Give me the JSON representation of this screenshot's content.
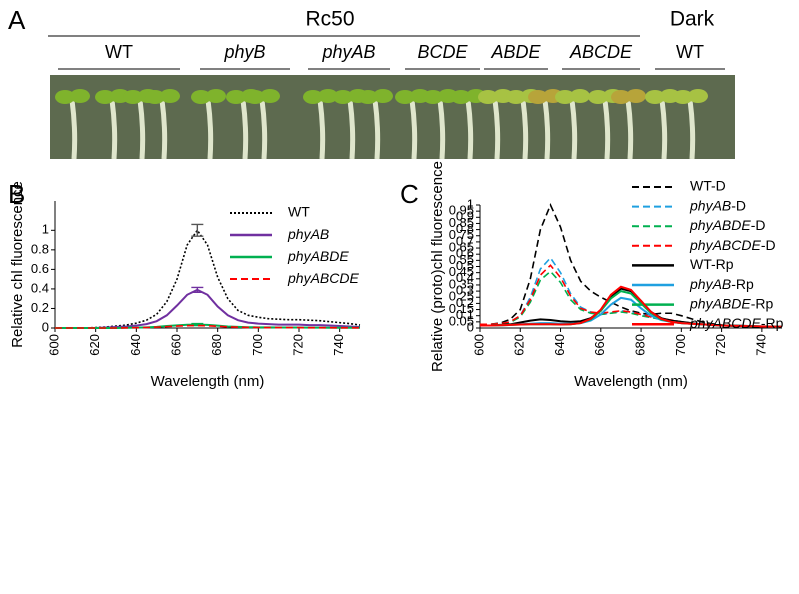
{
  "panel_a": {
    "label": "A",
    "light_header": "Rc50",
    "dark_header": "Dark",
    "genotypes": [
      "WT",
      "phyB",
      "phyAB",
      "BCDE",
      "ABDE",
      "ABCDE",
      "WT"
    ]
  },
  "chart_data": [
    {
      "type": "line",
      "panel_label": "B",
      "x_label": "Wavelength (nm)",
      "y_label": "Relative chl  fluorescence",
      "x": [
        600,
        605,
        610,
        615,
        620,
        625,
        630,
        635,
        640,
        645,
        650,
        655,
        660,
        665,
        670,
        675,
        680,
        685,
        690,
        695,
        700,
        705,
        710,
        715,
        720,
        725,
        730,
        735,
        740,
        745,
        750
      ],
      "xlim": [
        600,
        750
      ],
      "xticks": [
        600,
        620,
        640,
        660,
        680,
        700,
        720,
        740
      ],
      "ylim": [
        0,
        1.3
      ],
      "yticks": [
        0,
        0.2,
        0.4,
        0.6,
        0.8,
        1
      ],
      "series": [
        {
          "name": "WT",
          "color": "#000000",
          "line_style": "dotted",
          "values": [
            0,
            0,
            0,
            0,
            0.005,
            0.01,
            0.02,
            0.03,
            0.05,
            0.08,
            0.14,
            0.27,
            0.5,
            0.85,
            1.0,
            0.85,
            0.52,
            0.3,
            0.18,
            0.13,
            0.11,
            0.095,
            0.09,
            0.085,
            0.085,
            0.08,
            0.075,
            0.065,
            0.055,
            0.045,
            0.03
          ],
          "errors": [
            null,
            null,
            null,
            null,
            null,
            null,
            null,
            null,
            null,
            null,
            null,
            null,
            null,
            null,
            0.06,
            null,
            null,
            null,
            null,
            null,
            null,
            null,
            null,
            null,
            null,
            null,
            null,
            null,
            null,
            null,
            null
          ]
        },
        {
          "name": "phyAB",
          "color": "#7030a0",
          "line_style": "solid",
          "values": [
            0,
            0,
            0,
            0,
            0,
            0.005,
            0.01,
            0.015,
            0.025,
            0.04,
            0.07,
            0.13,
            0.23,
            0.34,
            0.39,
            0.34,
            0.22,
            0.13,
            0.08,
            0.055,
            0.045,
            0.04,
            0.035,
            0.035,
            0.035,
            0.03,
            0.03,
            0.025,
            0.02,
            0.015,
            0.01
          ],
          "errors": [
            null,
            null,
            null,
            null,
            null,
            null,
            null,
            null,
            null,
            null,
            null,
            null,
            null,
            null,
            0.025,
            null,
            null,
            null,
            null,
            null,
            null,
            null,
            null,
            null,
            null,
            null,
            null,
            null,
            null,
            null,
            null
          ]
        },
        {
          "name": "phyABDE",
          "color": "#00b050",
          "line_style": "solid",
          "values": [
            0,
            0,
            0,
            0,
            0,
            0,
            0,
            0.002,
            0.004,
            0.007,
            0.012,
            0.02,
            0.027,
            0.033,
            0.035,
            0.032,
            0.024,
            0.016,
            0.011,
            0.008,
            0.007,
            0.006,
            0.005,
            0.005,
            0.005,
            0.004,
            0.004,
            0.003,
            0.003,
            0.002,
            0.002
          ],
          "errors": [
            null,
            null,
            null,
            null,
            null,
            null,
            null,
            null,
            null,
            null,
            null,
            null,
            null,
            null,
            0.01,
            null,
            null,
            null,
            null,
            null,
            null,
            null,
            null,
            null,
            null,
            null,
            null,
            null,
            null,
            null,
            null
          ]
        },
        {
          "name": "phyABCDE",
          "color": "#ff0000",
          "line_style": "dashed",
          "values": [
            0,
            0,
            0,
            0,
            0,
            0,
            0,
            0.002,
            0.003,
            0.005,
            0.009,
            0.014,
            0.02,
            0.024,
            0.025,
            0.023,
            0.018,
            0.012,
            0.008,
            0.006,
            0.005,
            0.004,
            0.004,
            0.004,
            0.004,
            0.003,
            0.003,
            0.003,
            0.002,
            0.002,
            0.002
          ],
          "errors": [
            null,
            null,
            null,
            null,
            null,
            null,
            null,
            null,
            null,
            null,
            null,
            null,
            null,
            null,
            null,
            null,
            null,
            null,
            null,
            null,
            null,
            null,
            null,
            null,
            null,
            null,
            null,
            null,
            null,
            null,
            null
          ]
        }
      ]
    },
    {
      "type": "line",
      "panel_label": "C",
      "x_label": "Wavelength (nm)",
      "y_label": "Relative (proto)chl  fluorescence",
      "x": [
        600,
        605,
        610,
        615,
        620,
        625,
        630,
        635,
        640,
        645,
        650,
        655,
        660,
        665,
        670,
        675,
        680,
        685,
        690,
        695,
        700,
        705,
        710,
        715,
        720,
        725,
        730,
        735,
        740,
        745,
        750
      ],
      "xlim": [
        600,
        750
      ],
      "xticks": [
        600,
        620,
        640,
        660,
        680,
        700,
        720,
        740
      ],
      "ylim": [
        0,
        1
      ],
      "yticks": [
        0,
        0.05,
        0.1,
        0.15,
        0.2,
        0.25,
        0.3,
        0.35,
        0.4,
        0.45,
        0.5,
        0.55,
        0.6,
        0.65,
        0.7,
        0.75,
        0.8,
        0.85,
        0.9,
        0.95,
        1
      ],
      "series": [
        {
          "name": "WT-D",
          "color": "#000000",
          "line_style": "dashed",
          "values": [
            0.03,
            0.03,
            0.04,
            0.07,
            0.15,
            0.4,
            0.8,
            1.0,
            0.82,
            0.55,
            0.38,
            0.3,
            0.25,
            0.21,
            0.17,
            0.14,
            0.12,
            0.11,
            0.12,
            0.12,
            0.1,
            0.075,
            0.05,
            0.035,
            0.025,
            0.02,
            0.017,
            0.015,
            0.013,
            0.012,
            0.01
          ]
        },
        {
          "name": "phyAB-D",
          "color": "#1fa0e0",
          "line_style": "dashed",
          "values": [
            0.03,
            0.03,
            0.035,
            0.05,
            0.1,
            0.25,
            0.48,
            0.57,
            0.45,
            0.28,
            0.17,
            0.13,
            0.11,
            0.12,
            0.14,
            0.13,
            0.11,
            0.09,
            0.075,
            0.065,
            0.05,
            0.04,
            0.03,
            0.025,
            0.02,
            0.018,
            0.015,
            0.013,
            0.012,
            0.011,
            0.01
          ]
        },
        {
          "name": "phyABDE-D",
          "color": "#00b050",
          "line_style": "dashed",
          "values": [
            0.03,
            0.03,
            0.035,
            0.045,
            0.09,
            0.21,
            0.39,
            0.46,
            0.37,
            0.23,
            0.15,
            0.12,
            0.11,
            0.12,
            0.13,
            0.12,
            0.1,
            0.085,
            0.07,
            0.06,
            0.05,
            0.04,
            0.03,
            0.025,
            0.02,
            0.018,
            0.015,
            0.013,
            0.012,
            0.011,
            0.01
          ]
        },
        {
          "name": "phyABCDE-D",
          "color": "#ff0000",
          "line_style": "dashed",
          "values": [
            0.03,
            0.03,
            0.035,
            0.05,
            0.1,
            0.23,
            0.43,
            0.51,
            0.41,
            0.26,
            0.16,
            0.13,
            0.12,
            0.13,
            0.14,
            0.13,
            0.11,
            0.09,
            0.075,
            0.065,
            0.05,
            0.04,
            0.03,
            0.025,
            0.02,
            0.018,
            0.015,
            0.013,
            0.012,
            0.011,
            0.01
          ]
        },
        {
          "name": "WT-Rp",
          "color": "#000000",
          "line_style": "solid",
          "values": [
            0.02,
            0.02,
            0.025,
            0.03,
            0.045,
            0.06,
            0.07,
            0.065,
            0.055,
            0.05,
            0.055,
            0.08,
            0.14,
            0.25,
            0.32,
            0.3,
            0.22,
            0.13,
            0.08,
            0.06,
            0.05,
            0.04,
            0.03,
            0.025,
            0.02,
            0.02,
            0.018,
            0.015,
            0.013,
            0.012,
            0.01
          ]
        },
        {
          "name": "phyAB-Rp",
          "color": "#1fa0e0",
          "line_style": "solid",
          "values": [
            0.02,
            0.02,
            0.022,
            0.025,
            0.03,
            0.035,
            0.04,
            0.04,
            0.035,
            0.035,
            0.04,
            0.06,
            0.11,
            0.19,
            0.245,
            0.23,
            0.16,
            0.1,
            0.065,
            0.05,
            0.04,
            0.035,
            0.03,
            0.025,
            0.02,
            0.018,
            0.016,
            0.014,
            0.012,
            0.011,
            0.01
          ]
        },
        {
          "name": "phyABDE-Rp",
          "color": "#00b050",
          "line_style": "solid",
          "values": [
            0.02,
            0.02,
            0.022,
            0.025,
            0.028,
            0.03,
            0.03,
            0.03,
            0.028,
            0.03,
            0.04,
            0.07,
            0.14,
            0.24,
            0.3,
            0.28,
            0.2,
            0.12,
            0.07,
            0.05,
            0.04,
            0.035,
            0.03,
            0.025,
            0.02,
            0.018,
            0.016,
            0.014,
            0.012,
            0.011,
            0.01
          ]
        },
        {
          "name": "phyABCDE-Rp",
          "color": "#ff0000",
          "line_style": "solid",
          "values": [
            0.02,
            0.02,
            0.022,
            0.025,
            0.028,
            0.03,
            0.03,
            0.03,
            0.028,
            0.03,
            0.04,
            0.075,
            0.15,
            0.27,
            0.335,
            0.31,
            0.22,
            0.13,
            0.075,
            0.05,
            0.04,
            0.035,
            0.03,
            0.025,
            0.02,
            0.018,
            0.016,
            0.014,
            0.012,
            0.011,
            0.01
          ]
        }
      ]
    }
  ]
}
